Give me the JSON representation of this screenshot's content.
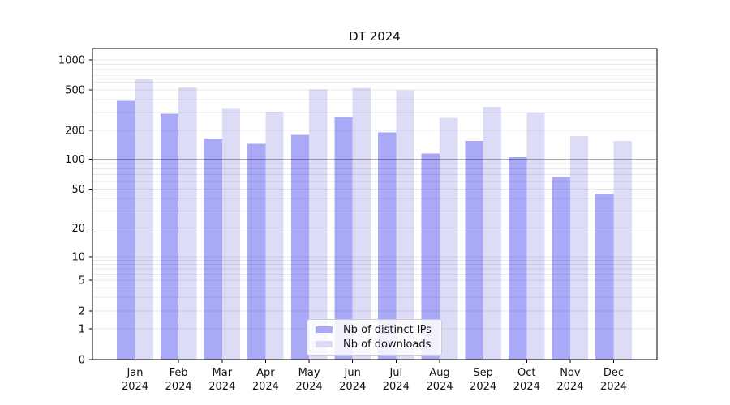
{
  "chart_data": {
    "type": "bar",
    "title": "DT 2024",
    "categories": [
      "Jan",
      "Feb",
      "Mar",
      "Apr",
      "May",
      "Jun",
      "Jul",
      "Aug",
      "Sep",
      "Oct",
      "Nov",
      "Dec"
    ],
    "category_year": "2024",
    "series": [
      {
        "name": "Nb of distinct IPs",
        "color": "#a9a9f7",
        "values": [
          390,
          290,
          165,
          145,
          180,
          270,
          190,
          115,
          155,
          105,
          66,
          45
        ]
      },
      {
        "name": "Nb of downloads",
        "color": "#dcdcf7",
        "values": [
          640,
          530,
          330,
          305,
          505,
          525,
          495,
          265,
          340,
          300,
          175,
          155
        ]
      }
    ],
    "y_axis": {
      "scale": "symlog",
      "ticks": [
        0,
        1,
        2,
        5,
        10,
        20,
        50,
        100,
        200,
        500,
        1000
      ],
      "tick_labels": [
        "0",
        "1",
        "2",
        "5",
        "10",
        "20",
        "50",
        "100",
        "200",
        "500",
        "1000"
      ],
      "range": [
        0,
        1150
      ]
    },
    "x_axis": {
      "label_line2": "2024"
    },
    "grid": {
      "visible": true,
      "highlight_line_value": 100
    },
    "legend_position": "inside-bottom-center"
  }
}
